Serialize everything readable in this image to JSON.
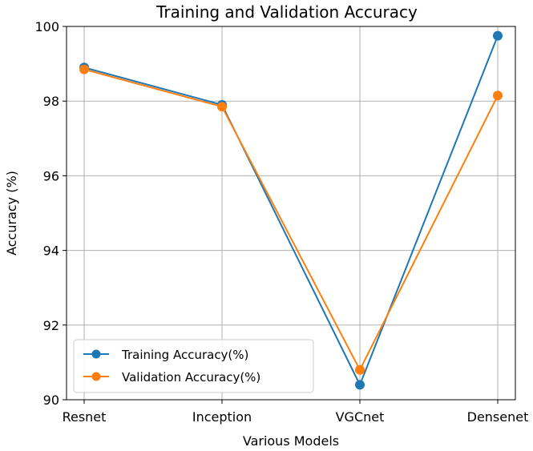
{
  "chart_data": {
    "type": "line",
    "title": "Training and Validation Accuracy",
    "xlabel": "Various Models",
    "ylabel": "Accuracy (%)",
    "categories": [
      "Resnet",
      "Inception",
      "VGCnet",
      "Densenet"
    ],
    "ylim": [
      90,
      100
    ],
    "yticks": [
      "90",
      "92",
      "94",
      "96",
      "98",
      "100"
    ],
    "grid": true,
    "legend_position": "lower-left",
    "series": [
      {
        "name": "Training Accuracy(%)",
        "color": "#1f77b4",
        "values": [
          98.9,
          97.9,
          90.4,
          99.75
        ]
      },
      {
        "name": "Validation Accuracy(%)",
        "color": "#ff7f0e",
        "values": [
          98.85,
          97.85,
          90.8,
          98.15
        ]
      }
    ]
  }
}
